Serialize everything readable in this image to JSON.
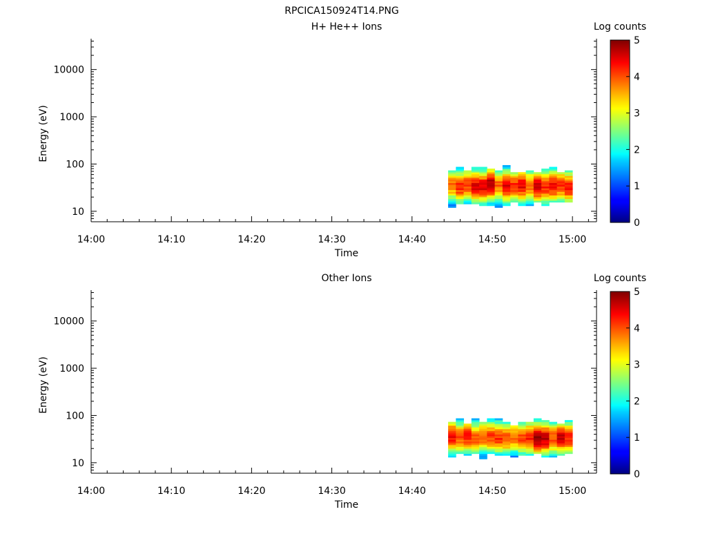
{
  "figure": {
    "title": "RPCICA150924T14.PNG"
  },
  "chart_data": [
    {
      "type": "heatmap",
      "title": "H+ He++ Ions",
      "xlabel": "Time",
      "ylabel": "Energy (eV)",
      "x_ticks": [
        "14:00",
        "14:10",
        "14:20",
        "14:30",
        "14:40",
        "14:50",
        "15:00"
      ],
      "x_range_minutes": [
        0,
        63
      ],
      "y_scale": "log",
      "y_ticks": [
        10,
        100,
        1000,
        10000
      ],
      "y_range": [
        6,
        45000
      ],
      "grid": false,
      "colorbar": {
        "label": "Log counts",
        "range": [
          0,
          5
        ],
        "ticks": [
          0,
          1,
          2,
          3,
          4,
          5
        ],
        "colormap": "jet"
      },
      "data": {
        "time_range_minutes": [
          44.5,
          60.0
        ],
        "energy_range_ev": [
          12,
          95
        ],
        "peak_energy_ev": 35,
        "peak_log_counts": 4.6,
        "columns": 16
      }
    },
    {
      "type": "heatmap",
      "title": "Other Ions",
      "xlabel": "Time",
      "ylabel": "Energy (eV)",
      "x_ticks": [
        "14:00",
        "14:10",
        "14:20",
        "14:30",
        "14:40",
        "14:50",
        "15:00"
      ],
      "x_range_minutes": [
        0,
        63
      ],
      "y_scale": "log",
      "y_ticks": [
        10,
        100,
        1000,
        10000
      ],
      "y_range": [
        6,
        45000
      ],
      "grid": false,
      "colorbar": {
        "label": "Log counts",
        "range": [
          0,
          5
        ],
        "ticks": [
          0,
          1,
          2,
          3,
          4,
          5
        ],
        "colormap": "jet"
      },
      "data": {
        "time_range_minutes": [
          44.5,
          60.0
        ],
        "energy_range_ev": [
          12,
          95
        ],
        "peak_energy_ev": 35,
        "peak_log_counts": 4.7,
        "columns": 16
      }
    }
  ]
}
